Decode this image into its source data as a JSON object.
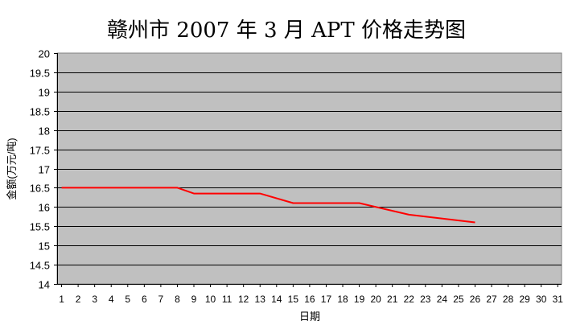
{
  "chart_data": {
    "type": "line",
    "title": "赣州市 2007 年 3 月 APT 价格走势图",
    "xlabel": "日期",
    "ylabel": "金额(万元/吨)",
    "x_ticks": [
      "1",
      "2",
      "3",
      "4",
      "5",
      "6",
      "7",
      "8",
      "9",
      "10",
      "11",
      "12",
      "13",
      "14",
      "15",
      "16",
      "17",
      "18",
      "19",
      "20",
      "21",
      "22",
      "23",
      "24",
      "25",
      "26",
      "27",
      "28",
      "29",
      "30",
      "31"
    ],
    "y_ticks": [
      "20",
      "19.5",
      "19",
      "18.5",
      "18",
      "17.5",
      "17",
      "16.5",
      "16",
      "15.5",
      "15",
      "14.5",
      "14"
    ],
    "xlim": [
      1,
      31
    ],
    "ylim": [
      14,
      20
    ],
    "grid": true,
    "legend": "none",
    "series": [
      {
        "x": [
          1,
          8,
          9,
          13,
          15,
          19,
          22,
          26
        ],
        "values": [
          16.5,
          16.5,
          16.35,
          16.35,
          16.1,
          16.1,
          15.8,
          15.6
        ],
        "color": "#ff0000"
      }
    ],
    "colors": {
      "plot_background": "#c0c0c0",
      "gridline": "#000000"
    }
  }
}
